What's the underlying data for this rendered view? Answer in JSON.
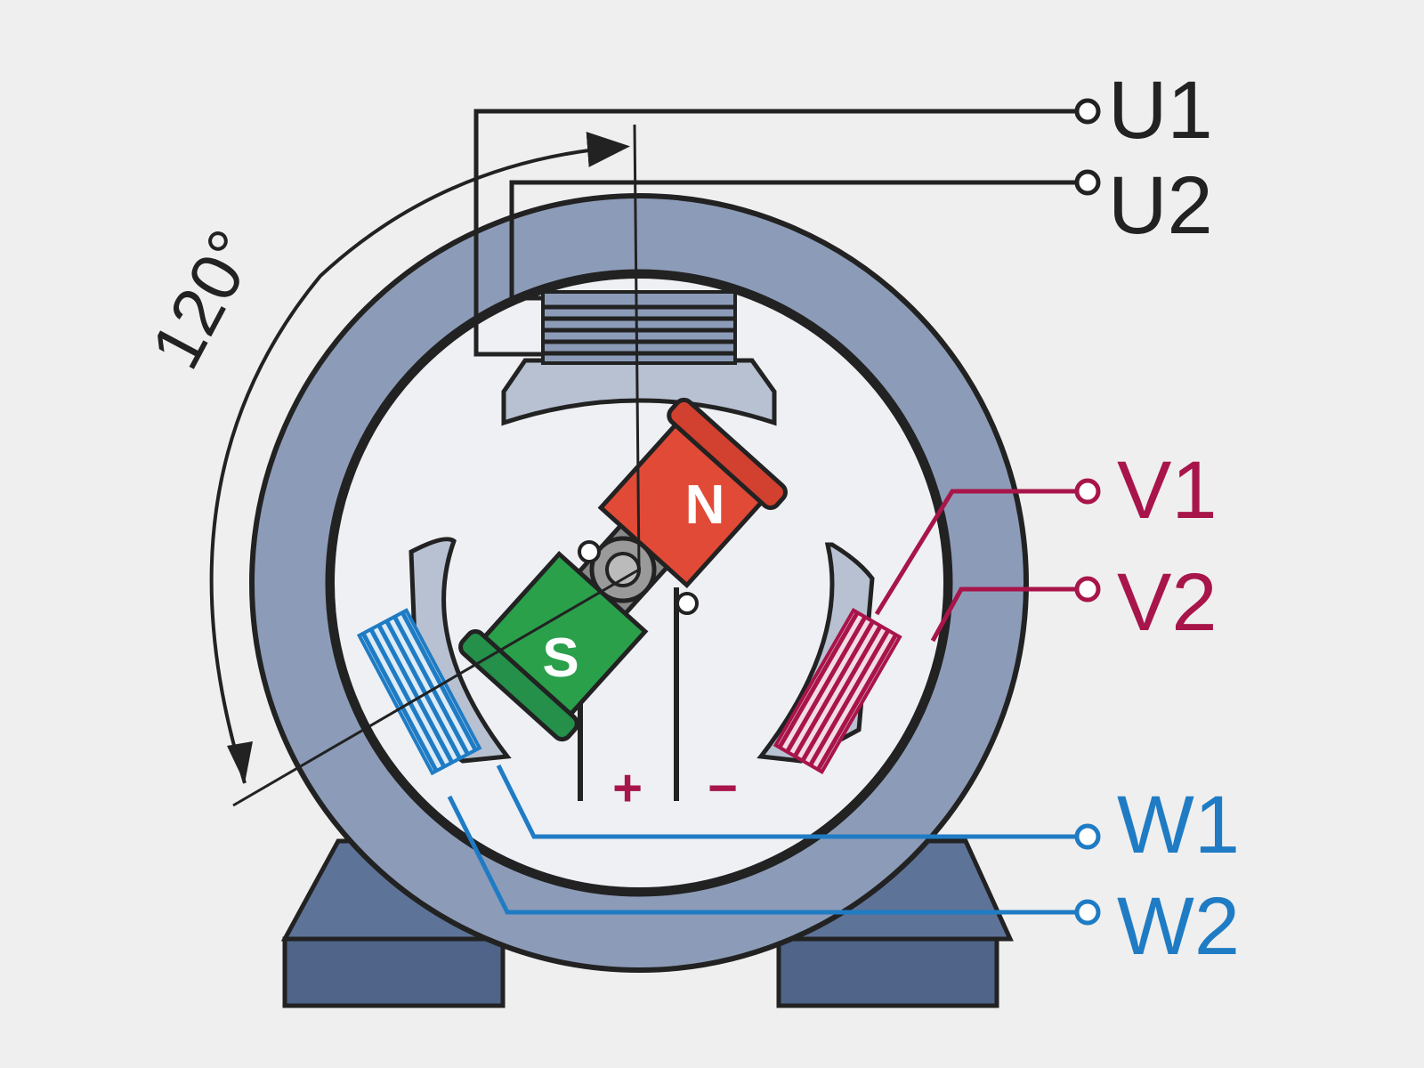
{
  "angle_label": "120°",
  "terminals": {
    "u1": "U1",
    "u2": "U2",
    "v1": "V1",
    "v2": "V2",
    "w1": "W1",
    "w2": "W2"
  },
  "rotor": {
    "north": "N",
    "south": "S"
  },
  "brushes": {
    "plus": "+",
    "minus": "−"
  },
  "colors": {
    "background": "#efefef",
    "stator": "#8c9cb8",
    "stator_dark": "#5e7398",
    "pole_shoe": "#b7c1d2",
    "north_pole": "#e14a36",
    "south_pole": "#2aa04b",
    "phase_u": "#222222",
    "phase_v": "#a8154a",
    "phase_w": "#1f7cc4"
  }
}
